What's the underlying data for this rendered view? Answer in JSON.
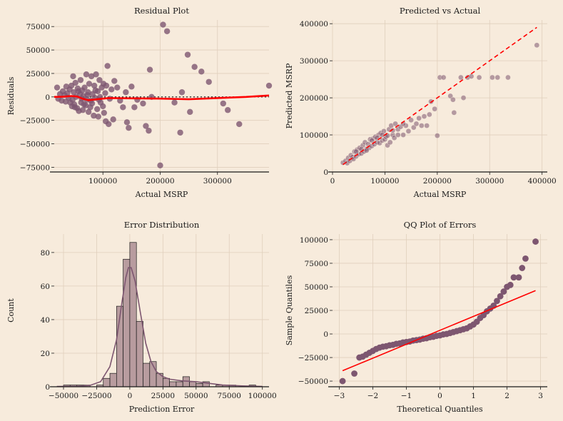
{
  "colors": {
    "background": "#f7ebdc",
    "points": "#7d5670",
    "fit_line": "#ff0000",
    "grid": "#e0cfbc",
    "axis": "#1a1a1a",
    "hist_bar": "#b89c9f",
    "kde": "#7d5670"
  },
  "chart_data": [
    {
      "type": "scatter",
      "title": "Residual Plot",
      "xlabel": "Actual MSRP",
      "ylabel": "Residuals",
      "xlim": [
        15000,
        390000
      ],
      "ylim": [
        -80000,
        82000
      ],
      "xticks": [
        100000,
        200000,
        300000
      ],
      "xtick_labels": [
        "100000",
        "200000",
        "300000"
      ],
      "yticks": [
        -75000,
        -50000,
        -25000,
        0,
        25000,
        50000,
        75000
      ],
      "ytick_labels": [
        "−75000",
        "−50000",
        "−25000",
        "0",
        "25000",
        "50000",
        "75000"
      ],
      "grid": true,
      "zero_line": "dotted",
      "points": [
        [
          20000,
          10000
        ],
        [
          22000,
          -2000
        ],
        [
          25000,
          3000
        ],
        [
          28000,
          -4000
        ],
        [
          30000,
          6000
        ],
        [
          33000,
          2000
        ],
        [
          35000,
          -5000
        ],
        [
          36000,
          11000
        ],
        [
          38000,
          4000
        ],
        [
          40000,
          -1000
        ],
        [
          42000,
          8000
        ],
        [
          43000,
          -6000
        ],
        [
          45000,
          12000
        ],
        [
          46000,
          -10000
        ],
        [
          48000,
          22000
        ],
        [
          49000,
          5000
        ],
        [
          50000,
          -8000
        ],
        [
          52000,
          15000
        ],
        [
          53000,
          0
        ],
        [
          55000,
          -12000
        ],
        [
          56000,
          9000
        ],
        [
          58000,
          -15000
        ],
        [
          60000,
          3000
        ],
        [
          61000,
          18000
        ],
        [
          62000,
          -6000
        ],
        [
          64000,
          7000
        ],
        [
          65000,
          -14000
        ],
        [
          66000,
          1000
        ],
        [
          68000,
          10000
        ],
        [
          70000,
          -9000
        ],
        [
          71000,
          24000
        ],
        [
          72000,
          -3000
        ],
        [
          74000,
          5000
        ],
        [
          75000,
          -16000
        ],
        [
          76000,
          14000
        ],
        [
          78000,
          -11000
        ],
        [
          80000,
          22000
        ],
        [
          81000,
          -7000
        ],
        [
          82000,
          3000
        ],
        [
          84000,
          -20000
        ],
        [
          85000,
          12000
        ],
        [
          86000,
          -1000
        ],
        [
          88000,
          24000
        ],
        [
          90000,
          -13000
        ],
        [
          91000,
          6000
        ],
        [
          92000,
          -21000
        ],
        [
          94000,
          18000
        ],
        [
          95000,
          0
        ],
        [
          96000,
          -6000
        ],
        [
          98000,
          10000
        ],
        [
          100000,
          -10000
        ],
        [
          101000,
          14000
        ],
        [
          102000,
          -17000
        ],
        [
          104000,
          4000
        ],
        [
          105000,
          -26000
        ],
        [
          106000,
          12000
        ],
        [
          108000,
          33000
        ],
        [
          110000,
          -29000
        ],
        [
          112000,
          -2000
        ],
        [
          115000,
          8000
        ],
        [
          118000,
          -24000
        ],
        [
          120000,
          17000
        ],
        [
          125000,
          10000
        ],
        [
          130000,
          -4000
        ],
        [
          135000,
          -11000
        ],
        [
          140000,
          5000
        ],
        [
          142000,
          -27000
        ],
        [
          145000,
          -33000
        ],
        [
          150000,
          11000
        ],
        [
          155000,
          -11000
        ],
        [
          160000,
          -3000
        ],
        [
          170000,
          -7000
        ],
        [
          175000,
          -31000
        ],
        [
          180000,
          -36000
        ],
        [
          182000,
          29000
        ],
        [
          185000,
          0
        ],
        [
          200000,
          -73000
        ],
        [
          205000,
          77000
        ],
        [
          212000,
          70000
        ],
        [
          225000,
          -6000
        ],
        [
          235000,
          -38000
        ],
        [
          238000,
          5000
        ],
        [
          248000,
          45000
        ],
        [
          252000,
          -16000
        ],
        [
          260000,
          32000
        ],
        [
          272000,
          27000
        ],
        [
          285000,
          16000
        ],
        [
          310000,
          -7000
        ],
        [
          318000,
          -14000
        ],
        [
          338000,
          -29000
        ],
        [
          390000,
          12000
        ],
        [
          47000,
          -3000
        ],
        [
          51000,
          -11000
        ],
        [
          57000,
          6000
        ],
        [
          63000,
          -2000
        ],
        [
          67000,
          -8000
        ],
        [
          73000,
          2000
        ],
        [
          79000,
          -4000
        ],
        [
          87000,
          7000
        ],
        [
          93000,
          -3000
        ]
      ],
      "trend": [
        [
          15000,
          0
        ],
        [
          30000,
          200
        ],
        [
          45000,
          1000
        ],
        [
          55000,
          400
        ],
        [
          65000,
          -2000
        ],
        [
          75000,
          -3500
        ],
        [
          90000,
          -2500
        ],
        [
          110000,
          -1200
        ],
        [
          150000,
          -1500
        ],
        [
          200000,
          -1800
        ],
        [
          250000,
          -2500
        ],
        [
          300000,
          -1200
        ],
        [
          350000,
          0
        ],
        [
          390000,
          1500
        ]
      ]
    },
    {
      "type": "scatter",
      "title": "Predicted vs Actual",
      "xlabel": "Actual MSRP",
      "ylabel": "Predicted MSRP",
      "xlim": [
        0,
        410000
      ],
      "ylim": [
        0,
        410000
      ],
      "xticks": [
        0,
        100000,
        200000,
        300000,
        400000
      ],
      "xtick_labels": [
        "0",
        "100000",
        "200000",
        "300000",
        "400000"
      ],
      "yticks": [
        0,
        100000,
        200000,
        300000,
        400000
      ],
      "ytick_labels": [
        "0",
        "100000",
        "200000",
        "300000",
        "400000"
      ],
      "grid": true,
      "diagonal": [
        [
          20000,
          20000
        ],
        [
          390000,
          390000
        ]
      ],
      "points": [
        [
          20000,
          25000
        ],
        [
          25000,
          30000
        ],
        [
          28000,
          24000
        ],
        [
          30000,
          38000
        ],
        [
          33000,
          30000
        ],
        [
          35000,
          45000
        ],
        [
          38000,
          40000
        ],
        [
          40000,
          35000
        ],
        [
          42000,
          55000
        ],
        [
          45000,
          42000
        ],
        [
          47000,
          60000
        ],
        [
          50000,
          48000
        ],
        [
          52000,
          65000
        ],
        [
          55000,
          50000
        ],
        [
          58000,
          72000
        ],
        [
          60000,
          55000
        ],
        [
          62000,
          80000
        ],
        [
          65000,
          62000
        ],
        [
          68000,
          75000
        ],
        [
          70000,
          65000
        ],
        [
          72000,
          88000
        ],
        [
          75000,
          70000
        ],
        [
          78000,
          90000
        ],
        [
          80000,
          75000
        ],
        [
          82000,
          95000
        ],
        [
          85000,
          80000
        ],
        [
          88000,
          100000
        ],
        [
          90000,
          78000
        ],
        [
          92000,
          105000
        ],
        [
          95000,
          85000
        ],
        [
          98000,
          110000
        ],
        [
          100000,
          88000
        ],
        [
          102000,
          95000
        ],
        [
          105000,
          72000
        ],
        [
          108000,
          115000
        ],
        [
          110000,
          80000
        ],
        [
          112000,
          125000
        ],
        [
          115000,
          100000
        ],
        [
          118000,
          92000
        ],
        [
          120000,
          130000
        ],
        [
          125000,
          115000
        ],
        [
          130000,
          122000
        ],
        [
          135000,
          100000
        ],
        [
          140000,
          125000
        ],
        [
          145000,
          110000
        ],
        [
          150000,
          140000
        ],
        [
          155000,
          120000
        ],
        [
          160000,
          130000
        ],
        [
          165000,
          145000
        ],
        [
          170000,
          125000
        ],
        [
          175000,
          150000
        ],
        [
          180000,
          125000
        ],
        [
          185000,
          155000
        ],
        [
          188000,
          190000
        ],
        [
          195000,
          170000
        ],
        [
          200000,
          98000
        ],
        [
          205000,
          255000
        ],
        [
          212000,
          255000
        ],
        [
          225000,
          205000
        ],
        [
          230000,
          195000
        ],
        [
          232000,
          160000
        ],
        [
          245000,
          255000
        ],
        [
          250000,
          200000
        ],
        [
          258000,
          255000
        ],
        [
          265000,
          258000
        ],
        [
          280000,
          255000
        ],
        [
          305000,
          255000
        ],
        [
          315000,
          255000
        ],
        [
          335000,
          255000
        ],
        [
          390000,
          342000
        ],
        [
          45000,
          55000
        ],
        [
          55000,
          62000
        ],
        [
          65000,
          58000
        ],
        [
          75000,
          85000
        ],
        [
          85000,
          92000
        ],
        [
          95000,
          100000
        ],
        [
          105000,
          98000
        ],
        [
          115000,
          112000
        ],
        [
          125000,
          100000
        ],
        [
          135000,
          130000
        ]
      ]
    },
    {
      "type": "bar",
      "title": "Error Distribution",
      "xlabel": "Prediction Error",
      "ylabel": "Count",
      "xlim": [
        -57000,
        105000
      ],
      "ylim": [
        0,
        91
      ],
      "xticks": [
        -50000,
        -25000,
        0,
        25000,
        50000,
        75000,
        100000
      ],
      "xtick_labels": [
        "−50000",
        "−25000",
        "0",
        "25000",
        "50000",
        "75000",
        "100000"
      ],
      "yticks": [
        0,
        20,
        40,
        60,
        80
      ],
      "ytick_labels": [
        "0",
        "20",
        "40",
        "60",
        "80"
      ],
      "grid": true,
      "bin_width": 5000,
      "bins_start": [
        -50000,
        -45000,
        -40000,
        -35000,
        -30000,
        -25000,
        -20000,
        -15000,
        -10000,
        -5000,
        0,
        5000,
        10000,
        15000,
        20000,
        25000,
        30000,
        35000,
        40000,
        45000,
        50000,
        55000,
        60000,
        65000,
        70000,
        75000,
        80000,
        85000,
        90000,
        95000
      ],
      "values": [
        1,
        1,
        1,
        1,
        0,
        1,
        5,
        8,
        48,
        76,
        86,
        39,
        14,
        15,
        8,
        5,
        3,
        3,
        6,
        3,
        2,
        3,
        0,
        1,
        1,
        1,
        0,
        0,
        1,
        0
      ],
      "kde": [
        [
          -55000,
          0.2
        ],
        [
          -40000,
          0.3
        ],
        [
          -30000,
          0.8
        ],
        [
          -22000,
          3
        ],
        [
          -15000,
          12
        ],
        [
          -10000,
          28
        ],
        [
          -6000,
          50
        ],
        [
          -3000,
          65
        ],
        [
          -1000,
          71
        ],
        [
          1000,
          71
        ],
        [
          4000,
          63
        ],
        [
          8000,
          44
        ],
        [
          12000,
          26
        ],
        [
          16000,
          15
        ],
        [
          20000,
          9
        ],
        [
          25000,
          6
        ],
        [
          30000,
          4.5
        ],
        [
          40000,
          3.5
        ],
        [
          50000,
          3
        ],
        [
          60000,
          2
        ],
        [
          70000,
          1
        ],
        [
          85000,
          0.5
        ],
        [
          100000,
          0.2
        ]
      ]
    },
    {
      "type": "scatter",
      "title": "QQ Plot of Errors",
      "xlabel": "Theoretical Quantiles",
      "ylabel": "Sample Quantiles",
      "xlim": [
        -3.2,
        3.2
      ],
      "ylim": [
        -56000,
        106000
      ],
      "xticks": [
        -3,
        -2,
        -1,
        0,
        1,
        2,
        3
      ],
      "xtick_labels": [
        "−3",
        "−2",
        "−1",
        "0",
        "1",
        "2",
        "3"
      ],
      "yticks": [
        -50000,
        -25000,
        0,
        25000,
        50000,
        75000,
        100000
      ],
      "ytick_labels": [
        "−50000",
        "−25000",
        "0",
        "25000",
        "50000",
        "75000",
        "100000"
      ],
      "grid": true,
      "fit_line": [
        [
          -2.9,
          -39000
        ],
        [
          2.85,
          46000
        ]
      ],
      "points": [
        [
          -2.9,
          -50000
        ],
        [
          -2.55,
          -42000
        ],
        [
          -2.4,
          -25000
        ],
        [
          -2.3,
          -24000
        ],
        [
          -2.2,
          -22000
        ],
        [
          -2.1,
          -20000
        ],
        [
          -2.0,
          -18000
        ],
        [
          -1.9,
          -16000
        ],
        [
          -1.8,
          -14500
        ],
        [
          -1.7,
          -13500
        ],
        [
          -1.6,
          -13000
        ],
        [
          -1.5,
          -12000
        ],
        [
          -1.4,
          -11500
        ],
        [
          -1.3,
          -10500
        ],
        [
          -1.2,
          -10000
        ],
        [
          -1.1,
          -9000
        ],
        [
          -1.0,
          -8500
        ],
        [
          -0.9,
          -8000
        ],
        [
          -0.8,
          -7000
        ],
        [
          -0.7,
          -6500
        ],
        [
          -0.6,
          -6000
        ],
        [
          -0.5,
          -5000
        ],
        [
          -0.4,
          -4500
        ],
        [
          -0.3,
          -3500
        ],
        [
          -0.2,
          -3000
        ],
        [
          -0.1,
          -2000
        ],
        [
          0.0,
          -1500
        ],
        [
          0.1,
          -500
        ],
        [
          0.2,
          0
        ],
        [
          0.3,
          1000
        ],
        [
          0.4,
          2000
        ],
        [
          0.5,
          3000
        ],
        [
          0.6,
          4000
        ],
        [
          0.7,
          5000
        ],
        [
          0.8,
          6000
        ],
        [
          0.9,
          8000
        ],
        [
          1.0,
          10000
        ],
        [
          1.1,
          13000
        ],
        [
          1.2,
          17000
        ],
        [
          1.3,
          20000
        ],
        [
          1.4,
          24000
        ],
        [
          1.5,
          27000
        ],
        [
          1.6,
          30000
        ],
        [
          1.7,
          35000
        ],
        [
          1.8,
          40000
        ],
        [
          1.9,
          45000
        ],
        [
          2.0,
          50000
        ],
        [
          2.1,
          52000
        ],
        [
          2.2,
          60000
        ],
        [
          2.35,
          60000
        ],
        [
          2.45,
          70000
        ],
        [
          2.55,
          80000
        ],
        [
          2.85,
          98000
        ]
      ]
    }
  ]
}
